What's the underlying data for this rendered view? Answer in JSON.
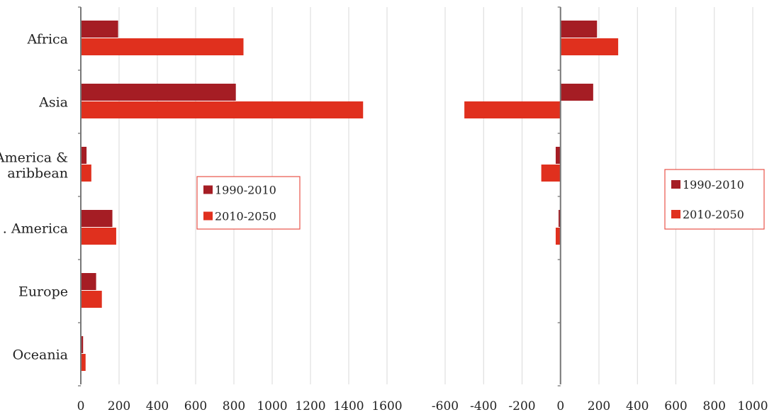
{
  "chart_data": [
    {
      "type": "bar",
      "orientation": "horizontal",
      "categories": [
        "Africa",
        "Asia",
        "Latin America & Caribbean",
        "N. America",
        "Europe",
        "Oceania"
      ],
      "category_display": [
        [
          "Africa"
        ],
        [
          "Asia"
        ],
        [
          "America &",
          "aribbean"
        ],
        [
          ". America"
        ],
        [
          "Europe"
        ],
        [
          "Oceania"
        ]
      ],
      "series": [
        {
          "name": "1990-2010",
          "values": [
            195,
            810,
            30,
            165,
            80,
            12
          ],
          "color": "#a51d24"
        },
        {
          "name": "2010-2050",
          "values": [
            850,
            1475,
            55,
            185,
            110,
            25
          ],
          "color": "#e0301e"
        }
      ],
      "xlim": [
        0,
        1600
      ],
      "xticks": [
        "0",
        "200",
        "400",
        "600",
        "800",
        "1000",
        "1200",
        "1400",
        "1600"
      ],
      "grid": true,
      "legend": "center-right"
    },
    {
      "type": "bar",
      "orientation": "horizontal",
      "categories": [
        "Africa",
        "Asia",
        "Latin America & Caribbean",
        "N. America",
        "Europe",
        "Oceania"
      ],
      "series": [
        {
          "name": "1990-2010",
          "values": [
            190,
            170,
            -25,
            -10,
            0,
            0
          ],
          "color": "#a51d24"
        },
        {
          "name": "2010-2050",
          "values": [
            300,
            -500,
            -100,
            -25,
            0,
            0
          ],
          "color": "#e0301e"
        }
      ],
      "xlim": [
        -600,
        1000
      ],
      "xticks": [
        "-600",
        "-400",
        "-200",
        "0",
        "200",
        "400",
        "600",
        "800",
        "1000"
      ],
      "grid": true,
      "legend": "right"
    }
  ]
}
